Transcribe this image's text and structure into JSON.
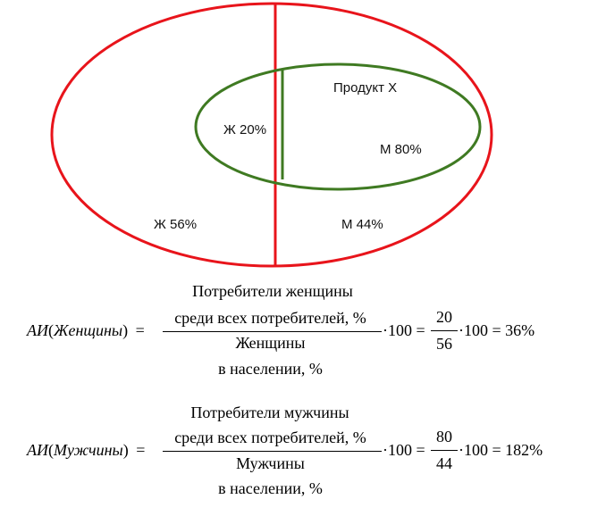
{
  "diagram": {
    "labels": {
      "product": "Продукт Х",
      "women_buyers": "Ж 20%",
      "men_buyers": "М 80%",
      "women_pop": "Ж 56%",
      "men_pop": "М 44%"
    },
    "colors": {
      "population": "#e8141b",
      "product": "#3f7a22"
    }
  },
  "formula_women": {
    "above_top": "Потребители женщины",
    "lhs_ai": "АИ",
    "lhs_open": "(",
    "lhs_group": "Женщины",
    "lhs_close": ")",
    "eq1": "=",
    "num": "среди всех потребителей, %",
    "den": "Женщины",
    "below": "в населении, %",
    "times100": "·100 =",
    "f_num": "20",
    "f_den": "56",
    "result": "·100 = 36%"
  },
  "formula_men": {
    "above_top": "Потребители мужчины",
    "lhs_ai": "АИ",
    "lhs_open": "(",
    "lhs_group": "Мужчины",
    "lhs_close": ")",
    "eq1": "=",
    "num": "среди всех потребителей, %",
    "den": "Мужчины",
    "below": "в населении, %",
    "times100": "·100 =",
    "f_num": "80",
    "f_den": "44",
    "result": "·100 = 182%"
  }
}
